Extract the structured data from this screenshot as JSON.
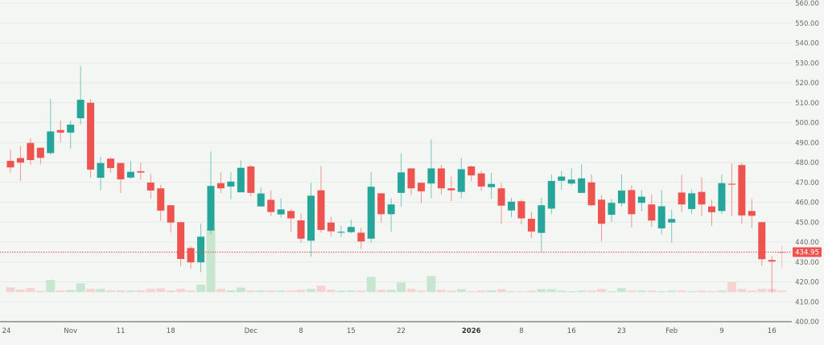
{
  "chart_data": {
    "type": "candlestick",
    "title": "",
    "xlabel": "",
    "ylabel": "",
    "ylim": [
      400,
      560
    ],
    "y_ticks": [
      "400.00",
      "410.00",
      "420.00",
      "430.00",
      "440.00",
      "450.00",
      "460.00",
      "470.00",
      "480.00",
      "490.00",
      "500.00",
      "510.00",
      "520.00",
      "530.00",
      "540.00",
      "550.00",
      "560.00"
    ],
    "grid": true,
    "x_labels": [
      {
        "label": "24",
        "candle": 1
      },
      {
        "label": "Nov",
        "candle": 7
      },
      {
        "label": "11",
        "candle": 12
      },
      {
        "label": "18",
        "candle": 17
      },
      {
        "label": "Dec",
        "candle": 25
      },
      {
        "label": "8",
        "candle": 30
      },
      {
        "label": "15",
        "candle": 35
      },
      {
        "label": "22",
        "candle": 40
      },
      {
        "label": "2026",
        "candle": 47,
        "bold": true
      },
      {
        "label": "8",
        "candle": 52
      },
      {
        "label": "16",
        "candle": 57
      },
      {
        "label": "23",
        "candle": 62
      },
      {
        "label": "Feb",
        "candle": 67
      },
      {
        "label": "9",
        "candle": 72
      },
      {
        "label": "16",
        "candle": 77
      }
    ],
    "ohlc": [
      [
        480.8,
        486.6,
        475.0,
        477.5
      ],
      [
        482.2,
        488.2,
        470.7,
        479.9
      ],
      [
        489.8,
        492.2,
        478.8,
        481.2
      ],
      [
        487.4,
        487.4,
        479.1,
        482.3
      ],
      [
        484.7,
        511.8,
        483.9,
        495.6
      ],
      [
        496.3,
        501.0,
        490.2,
        495.0
      ],
      [
        495.0,
        501.0,
        486.9,
        499.0
      ],
      [
        502.2,
        528.4,
        499.0,
        511.5
      ],
      [
        510.0,
        511.8,
        472.3,
        476.4
      ],
      [
        472.3,
        482.8,
        466.0,
        479.7
      ],
      [
        481.9,
        482.5,
        474.8,
        477.2
      ],
      [
        479.7,
        479.7,
        464.7,
        471.5
      ],
      [
        472.4,
        480.9,
        471.8,
        475.3
      ],
      [
        475.6,
        479.9,
        471.4,
        474.9
      ],
      [
        469.9,
        474.2,
        461.8,
        465.9
      ],
      [
        467.0,
        468.7,
        450.8,
        455.8
      ],
      [
        458.5,
        458.5,
        444.7,
        449.8
      ],
      [
        450.0,
        450.0,
        427.9,
        431.5
      ],
      [
        437.0,
        438.1,
        426.6,
        429.8
      ],
      [
        429.8,
        449.2,
        424.9,
        442.7
      ],
      [
        445.8,
        485.5,
        444.0,
        468.2
      ],
      [
        469.6,
        475.0,
        464.7,
        467.0
      ],
      [
        467.9,
        475.0,
        461.5,
        470.4
      ],
      [
        465.0,
        481.1,
        465.0,
        477.3
      ],
      [
        478.0,
        478.8,
        462.9,
        464.7
      ],
      [
        457.9,
        467.4,
        457.9,
        464.4
      ],
      [
        461.2,
        466.0,
        453.1,
        455.1
      ],
      [
        453.9,
        462.0,
        452.2,
        456.4
      ],
      [
        455.6,
        456.6,
        445.3,
        451.9
      ],
      [
        450.9,
        454.4,
        439.6,
        441.7
      ],
      [
        440.7,
        469.8,
        432.6,
        463.3
      ],
      [
        466.0,
        478.1,
        444.7,
        446.1
      ],
      [
        449.8,
        452.8,
        442.8,
        445.4
      ],
      [
        445.0,
        448.2,
        442.6,
        445.2
      ],
      [
        445.0,
        451.2,
        444.4,
        447.6
      ],
      [
        444.7,
        447.2,
        436.5,
        440.3
      ],
      [
        441.7,
        475.2,
        439.6,
        467.8
      ],
      [
        464.5,
        464.5,
        449.8,
        454.0
      ],
      [
        454.0,
        462.0,
        445.3,
        458.9
      ],
      [
        464.7,
        484.6,
        457.7,
        475.0
      ],
      [
        477.0,
        477.0,
        463.6,
        467.0
      ],
      [
        469.8,
        469.8,
        459.5,
        465.5
      ],
      [
        469.4,
        491.6,
        462.0,
        477.0
      ],
      [
        477.0,
        478.8,
        463.8,
        467.0
      ],
      [
        467.0,
        473.0,
        460.6,
        466.0
      ],
      [
        465.2,
        482.2,
        462.0,
        476.6
      ],
      [
        478.0,
        478.5,
        470.7,
        473.5
      ],
      [
        474.5,
        475.8,
        465.7,
        467.9
      ],
      [
        467.6,
        474.8,
        461.7,
        469.2
      ],
      [
        467.0,
        469.8,
        449.2,
        458.3
      ],
      [
        455.9,
        462.2,
        452.5,
        460.3
      ],
      [
        460.5,
        461.3,
        449.0,
        451.9
      ],
      [
        451.7,
        455.2,
        442.0,
        445.3
      ],
      [
        444.6,
        462.2,
        434.8,
        458.5
      ],
      [
        456.8,
        474.0,
        454.0,
        470.7
      ],
      [
        470.8,
        475.7,
        466.3,
        472.9
      ],
      [
        469.4,
        477.0,
        468.4,
        471.4
      ],
      [
        464.7,
        479.1,
        464.7,
        472.0
      ],
      [
        470.0,
        474.0,
        457.9,
        458.5
      ],
      [
        461.3,
        463.6,
        440.4,
        449.2
      ],
      [
        453.7,
        461.7,
        450.0,
        459.7
      ],
      [
        459.5,
        474.0,
        457.9,
        465.9
      ],
      [
        466.1,
        468.4,
        447.4,
        454.0
      ],
      [
        459.7,
        466.0,
        455.5,
        462.8
      ],
      [
        458.9,
        463.8,
        447.6,
        450.8
      ],
      [
        446.9,
        466.0,
        443.8,
        458.0
      ],
      [
        449.8,
        456.3,
        439.8,
        451.6
      ],
      [
        464.9,
        473.8,
        455.0,
        458.9
      ],
      [
        456.6,
        466.5,
        454.1,
        464.5
      ],
      [
        465.2,
        472.5,
        453.1,
        458.9
      ],
      [
        457.9,
        461.3,
        448.2,
        455.0
      ],
      [
        455.6,
        474.0,
        454.1,
        469.6
      ],
      [
        469.3,
        479.5,
        453.0,
        469.1
      ],
      [
        478.7,
        479.7,
        449.3,
        453.4
      ],
      [
        455.6,
        461.7,
        446.9,
        453.2
      ],
      [
        450.0,
        450.0,
        428.0,
        431.4
      ],
      [
        431.0,
        432.9,
        414.8,
        430.2
      ],
      [
        435.0,
        438.3,
        426.7,
        434.95
      ]
    ],
    "volume_relative": [
      6,
      3.3,
      5.3,
      1.7,
      15.3,
      2.3,
      2.7,
      11,
      4,
      4,
      2.3,
      2.3,
      2,
      2.3,
      4,
      4.7,
      2.3,
      4,
      2.3,
      9.3,
      79,
      4,
      2.3,
      5.7,
      2,
      2,
      2,
      2,
      2,
      3,
      4,
      8,
      3,
      2,
      2,
      2,
      19,
      3,
      3,
      12,
      4,
      2,
      20,
      3,
      2,
      3.7,
      1.3,
      2,
      2.3,
      3.7,
      1.3,
      1.3,
      2,
      3.7,
      3.7,
      2,
      1.3,
      2,
      2,
      4,
      1.3,
      5,
      2,
      2,
      2,
      1.3,
      2,
      2,
      1.3,
      2,
      1.3,
      2,
      12.7,
      4,
      2,
      4,
      4,
      2
    ],
    "last_price": "434.95",
    "last_price_value": 434.95,
    "colors": {
      "up": "#26a69a",
      "down": "#ef5350",
      "up_volume": "#c8e6cf",
      "down_volume": "#f6d3d1",
      "price_line": "#ef5350"
    }
  }
}
